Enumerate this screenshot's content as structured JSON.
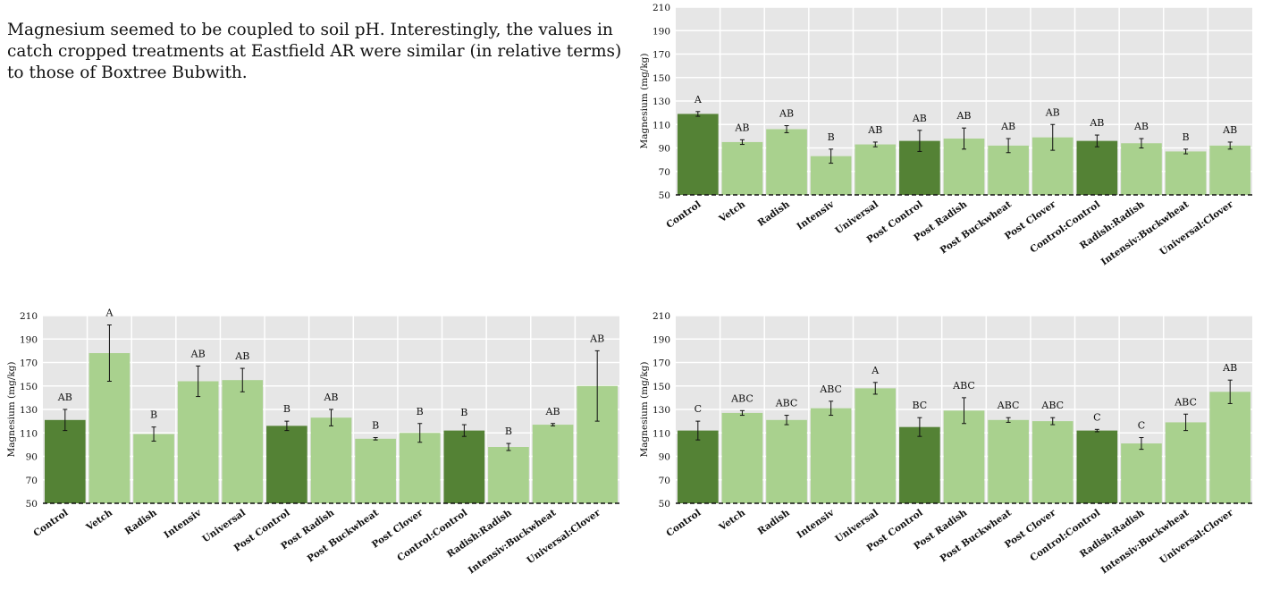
{
  "intro_text": "Magnesium seemed to be coupled to soil pH. Interestingly, the values in catch cropped treatments at Eastfield AR were similar (in relative terms) to those of Boxtree Bubwith.",
  "colors": {
    "control": "#548235",
    "treatment": "#a9d18e",
    "plot_background": "#e6e6e6",
    "grid": "#ffffff"
  },
  "chart_data": [
    {
      "type": "bar",
      "ylabel": "Magnesium (mg/kg)",
      "ylim": [
        50,
        210
      ],
      "yticks": [
        50,
        70,
        90,
        110,
        130,
        150,
        170,
        190,
        210
      ],
      "grid": true,
      "categories": [
        "Control",
        "Vetch",
        "Radish",
        "Intensiv",
        "Universal",
        "Post Control",
        "Post Radish",
        "Post Buckwheat",
        "Post Clover",
        "Control:Control",
        "Radish:Radish",
        "Intensiv:Buckwheat",
        "Universal:Clover"
      ],
      "values": [
        119,
        95,
        106,
        83,
        93,
        96,
        98,
        92,
        99,
        96,
        94,
        87,
        92
      ],
      "errors": [
        2,
        2,
        3,
        6,
        2,
        9,
        9,
        6,
        11,
        5,
        4,
        2,
        3
      ],
      "letters": [
        "A",
        "AB",
        "AB",
        "B",
        "AB",
        "AB",
        "AB",
        "AB",
        "AB",
        "AB",
        "AB",
        "B",
        "AB"
      ],
      "control_categories": [
        "Control",
        "Post Control",
        "Control:Control"
      ]
    },
    {
      "type": "bar",
      "ylabel": "Magnesium (mg/kg)",
      "ylim": [
        50,
        210
      ],
      "yticks": [
        50,
        70,
        90,
        110,
        130,
        150,
        170,
        190,
        210
      ],
      "grid": true,
      "categories": [
        "Control",
        "Vetch",
        "Radish",
        "Intensiv",
        "Universal",
        "Post Control",
        "Post Radish",
        "Post Buckwheat",
        "Post Clover",
        "Control:Control",
        "Radish:Radish",
        "Intensiv:Buckwheat",
        "Universal:Clover"
      ],
      "values": [
        121,
        178,
        109,
        154,
        155,
        116,
        123,
        105,
        110,
        112,
        98,
        117,
        150
      ],
      "errors": [
        9,
        24,
        6,
        13,
        10,
        4,
        7,
        1,
        8,
        5,
        3,
        1,
        30
      ],
      "letters": [
        "AB",
        "A",
        "B",
        "AB",
        "AB",
        "B",
        "AB",
        "B",
        "B",
        "B",
        "B",
        "AB",
        "AB"
      ],
      "control_categories": [
        "Control",
        "Post Control",
        "Control:Control"
      ]
    },
    {
      "type": "bar",
      "ylabel": "Magnesium (mg/kg)",
      "ylim": [
        50,
        210
      ],
      "yticks": [
        50,
        70,
        90,
        110,
        130,
        150,
        170,
        190,
        210
      ],
      "grid": true,
      "categories": [
        "Control",
        "Vetch",
        "Radish",
        "Intensiv",
        "Universal",
        "Post Control",
        "Post Radish",
        "Post Buckwheat",
        "Post Clover",
        "Control:Control",
        "Radish:Radish",
        "Intensiv:Buckwheat",
        "Universal:Clover"
      ],
      "values": [
        112,
        127,
        121,
        131,
        148,
        115,
        129,
        121,
        120,
        112,
        101,
        119,
        145
      ],
      "errors": [
        8,
        2,
        4,
        6,
        5,
        8,
        11,
        2,
        3,
        1,
        5,
        7,
        10
      ],
      "letters": [
        "C",
        "ABC",
        "ABC",
        "ABC",
        "A",
        "BC",
        "ABC",
        "ABC",
        "ABC",
        "C",
        "C",
        "ABC",
        "AB"
      ],
      "control_categories": [
        "Control",
        "Post Control",
        "Control:Control"
      ]
    }
  ]
}
